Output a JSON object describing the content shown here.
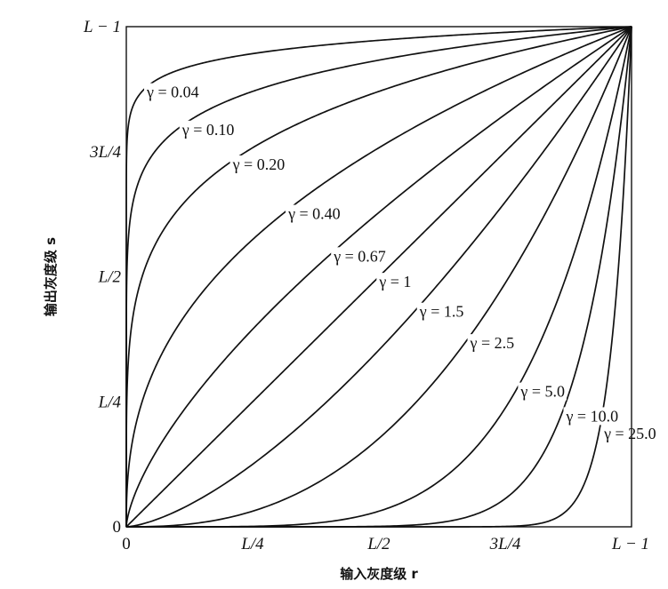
{
  "chart_data": {
    "type": "line",
    "title": "",
    "xlabel": "输入灰度级 r",
    "ylabel": "输出灰度级 s",
    "xlim": [
      0,
      1
    ],
    "ylim": [
      0,
      1
    ],
    "x_ticks": [
      {
        "value": 0,
        "label": "0"
      },
      {
        "value": 0.25,
        "label": "L/4"
      },
      {
        "value": 0.5,
        "label": "L/2"
      },
      {
        "value": 0.75,
        "label": "3L/4"
      },
      {
        "value": 1,
        "label": "L − 1"
      }
    ],
    "y_ticks": [
      {
        "value": 0,
        "label": "0"
      },
      {
        "value": 0.25,
        "label": "L/4"
      },
      {
        "value": 0.5,
        "label": "L/2"
      },
      {
        "value": 0.75,
        "label": "3L/4"
      },
      {
        "value": 1,
        "label": "L − 1"
      }
    ],
    "function": "s = r^gamma",
    "series": [
      {
        "name": "γ = 0.04",
        "gamma": 0.04
      },
      {
        "name": "γ = 0.10",
        "gamma": 0.1
      },
      {
        "name": "γ = 0.20",
        "gamma": 0.2
      },
      {
        "name": "γ = 0.40",
        "gamma": 0.4
      },
      {
        "name": "γ = 0.67",
        "gamma": 0.67
      },
      {
        "name": "γ = 1",
        "gamma": 1
      },
      {
        "name": "γ = 1.5",
        "gamma": 1.5
      },
      {
        "name": "γ = 2.5",
        "gamma": 2.5
      },
      {
        "name": "γ = 5.0",
        "gamma": 5.0
      },
      {
        "name": "γ = 10.0",
        "gamma": 10.0
      },
      {
        "name": "γ = 25.0",
        "gamma": 25.0
      }
    ],
    "grid": false,
    "legend": "inline labels along curves"
  }
}
